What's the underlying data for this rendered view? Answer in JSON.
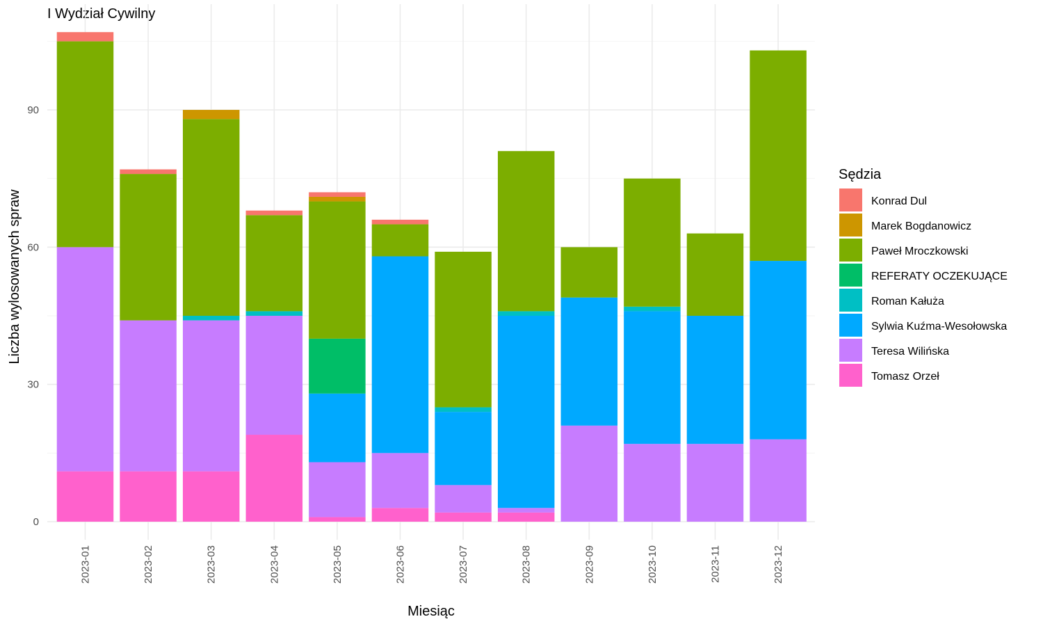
{
  "chart_data": {
    "type": "bar",
    "stacked": true,
    "title": "I Wydział Cywilny",
    "xlabel": "Miesiąc",
    "ylabel": "Liczba wylosowanych spraw",
    "ylim": [
      0,
      108
    ],
    "yticks": [
      0,
      30,
      60,
      90
    ],
    "grid": true,
    "legend_title": "Sędzia",
    "legend_position": "right",
    "categories": [
      "2023-01",
      "2023-02",
      "2023-03",
      "2023-04",
      "2023-05",
      "2023-06",
      "2023-07",
      "2023-08",
      "2023-09",
      "2023-10",
      "2023-11",
      "2023-12"
    ],
    "series": [
      {
        "name": "Tomasz Orzeł",
        "color": "#FF61CC",
        "values": [
          11,
          11,
          11,
          19,
          1,
          3,
          2,
          2,
          0,
          0,
          0,
          0
        ]
      },
      {
        "name": "Teresa Wilińska",
        "color": "#C77CFF",
        "values": [
          49,
          33,
          33,
          26,
          12,
          12,
          6,
          1,
          21,
          17,
          17,
          18
        ]
      },
      {
        "name": "Sylwia Kuźma-Wesołowska",
        "color": "#00A9FF",
        "values": [
          0,
          0,
          0,
          0,
          15,
          43,
          16,
          42,
          28,
          29,
          28,
          39
        ]
      },
      {
        "name": "Roman Kałuża",
        "color": "#00BFC4",
        "values": [
          0,
          0,
          1,
          1,
          0,
          0,
          1,
          1,
          0,
          1,
          0,
          0
        ]
      },
      {
        "name": "REFERATY OCZEKUJĄCE",
        "color": "#00BE67",
        "values": [
          0,
          0,
          0,
          0,
          12,
          0,
          0,
          0,
          0,
          0,
          0,
          0
        ]
      },
      {
        "name": "Paweł Mroczkowski",
        "color": "#7CAE00",
        "values": [
          45,
          32,
          43,
          21,
          30,
          7,
          34,
          35,
          11,
          28,
          18,
          46
        ]
      },
      {
        "name": "Marek Bogdanowicz",
        "color": "#CD9600",
        "values": [
          0,
          0,
          2,
          0,
          1,
          0,
          0,
          0,
          0,
          0,
          0,
          0
        ]
      },
      {
        "name": "Konrad Dul",
        "color": "#F8766D",
        "values": [
          2,
          1,
          0,
          1,
          1,
          1,
          0,
          0,
          0,
          0,
          0,
          0
        ]
      }
    ],
    "legend_order": [
      "Konrad Dul",
      "Marek Bogdanowicz",
      "Paweł Mroczkowski",
      "REFERATY OCZEKUJĄCE",
      "Roman Kałuża",
      "Sylwia Kuźma-Wesołowska",
      "Teresa Wilińska",
      "Tomasz Orzeł"
    ]
  }
}
